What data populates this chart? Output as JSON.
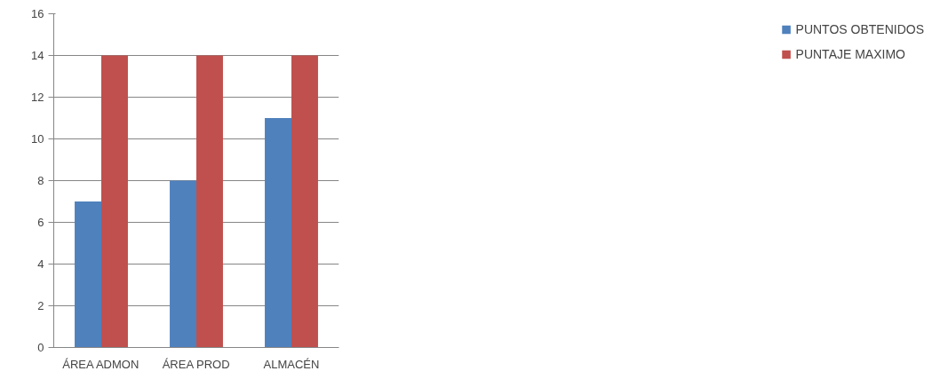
{
  "chart_data": {
    "type": "bar",
    "categories": [
      "ÁREA ADMON",
      "ÁREA PROD",
      "ALMACÉN"
    ],
    "series": [
      {
        "name": "PUNTOS OBTENIDOS",
        "color": "#4f81bd",
        "values": [
          7,
          8,
          11
        ]
      },
      {
        "name": "PUNTAJE MAXIMO",
        "color": "#c0504d",
        "values": [
          14,
          14,
          14
        ]
      }
    ],
    "ylim": [
      0,
      16
    ],
    "yticks": [
      0,
      2,
      4,
      6,
      8,
      10,
      12,
      14,
      16
    ],
    "grid": "y",
    "legend": "right"
  }
}
